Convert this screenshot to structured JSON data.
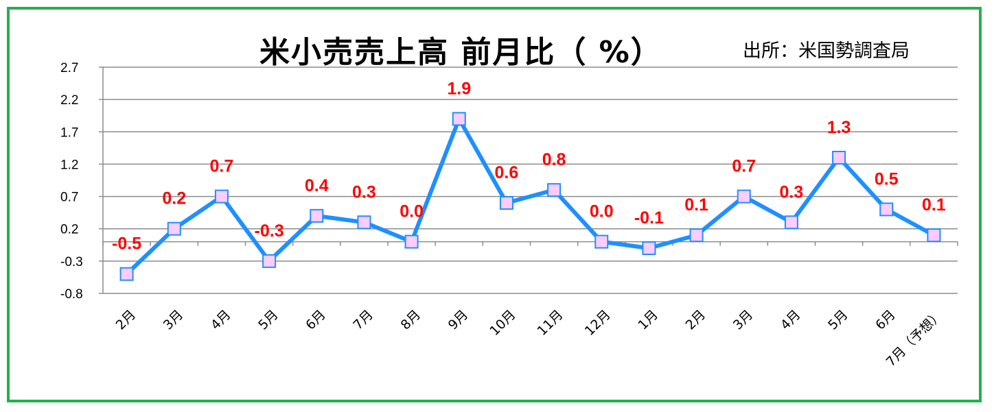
{
  "chart_data": {
    "type": "line",
    "title": "米小売売上高 前月比（ %）",
    "subtitle": "出所：米国勢調査局",
    "xlabel": "",
    "ylabel": "",
    "categories": [
      "2月",
      "3月",
      "4月",
      "5月",
      "6月",
      "7月",
      "8月",
      "9月",
      "10月",
      "11月",
      "12月",
      "1月",
      "2月",
      "3月",
      "4月",
      "5月",
      "6月",
      "7月（予想）"
    ],
    "values": [
      -0.5,
      0.2,
      0.7,
      -0.3,
      0.4,
      0.3,
      0.0,
      1.9,
      0.6,
      0.8,
      0.0,
      -0.1,
      0.1,
      0.7,
      0.3,
      1.3,
      0.5,
      0.1
    ],
    "data_labels": [
      "-0.5",
      "0.2",
      "0.7",
      "-0.3",
      "0.4",
      "0.3",
      "0.0",
      "1.9",
      "0.6",
      "0.8",
      "0.0",
      "-0.1",
      "0.1",
      "0.7",
      "0.3",
      "1.3",
      "0.5",
      "0.1"
    ],
    "yticks": [
      "2.7",
      "2.2",
      "1.7",
      "1.2",
      "0.7",
      "0.2",
      "-0.3",
      "-0.8"
    ],
    "ylim": [
      -0.8,
      2.7
    ],
    "grid": true,
    "line_color": "#1e90ff",
    "marker_fill": "#ffccff",
    "label_color": "#ff0000",
    "frame_color": "#22b14c"
  }
}
